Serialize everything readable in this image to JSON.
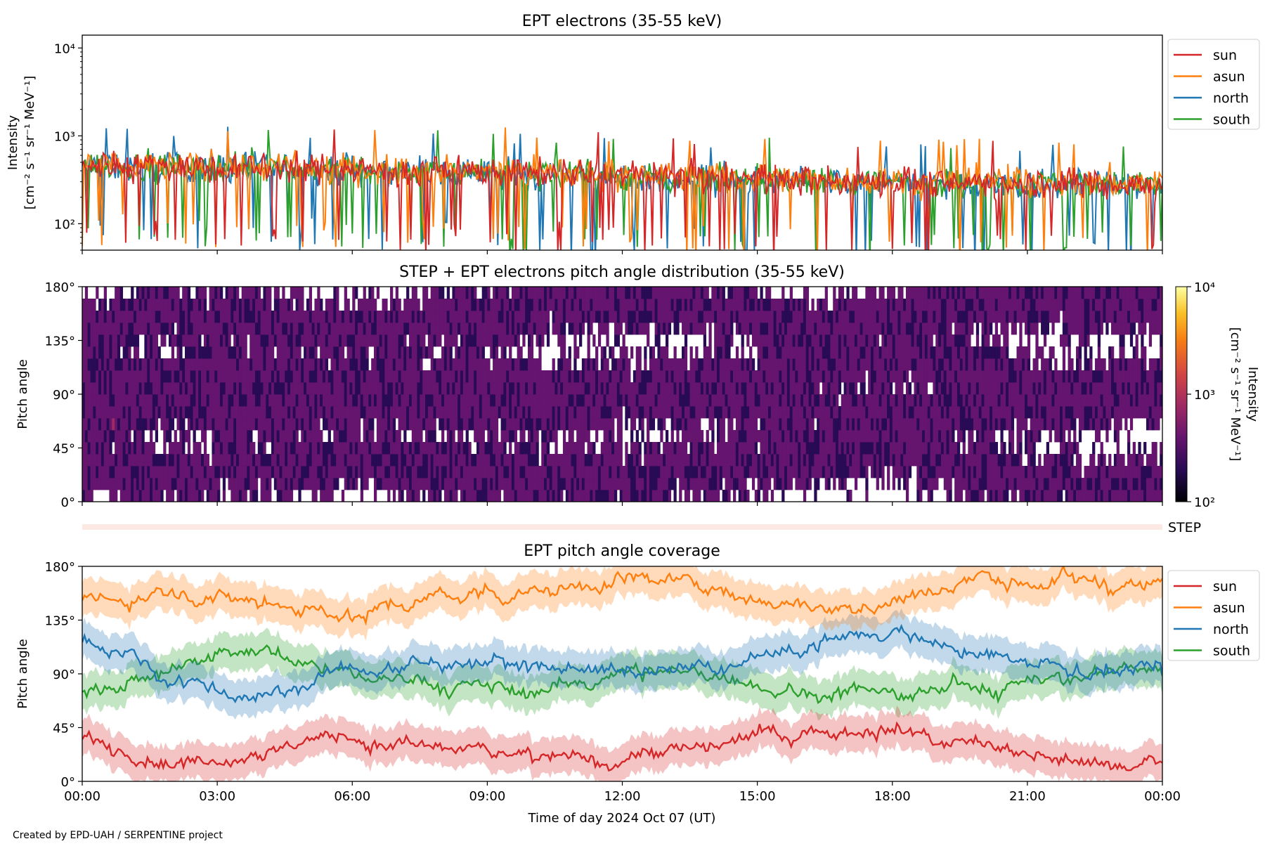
{
  "footer": "Created by EPD-UAH / SERPENTINE project",
  "colors": {
    "sun": "#d62728",
    "asun": "#ff7f0e",
    "north": "#1f77b4",
    "south": "#2ca02c",
    "step_bar": "#fde9e4"
  },
  "chart_data": [
    {
      "type": "line",
      "title": "EPT electrons (35-55 keV)",
      "ylabel_lines": [
        "Intensity",
        "[cm⁻² s⁻¹ sr⁻¹ MeV⁻¹]"
      ],
      "yscale": "log",
      "ylim": [
        50,
        14000
      ],
      "yticks": [
        {
          "value": 100,
          "label": "10²"
        },
        {
          "value": 1000,
          "label": "10³"
        },
        {
          "value": 10000,
          "label": "10⁴"
        }
      ],
      "xlim": [
        "2024-10-07 00:00",
        "2024-10-08 00:00"
      ],
      "legend": {
        "placement": "outside-right",
        "entries": [
          "sun",
          "asun",
          "north",
          "south"
        ]
      },
      "series": [
        {
          "name": "sun",
          "x": [
            "00:00",
            "02:00",
            "04:00",
            "06:00",
            "08:00",
            "10:00",
            "12:00",
            "14:00",
            "16:00",
            "18:00",
            "20:00",
            "22:00",
            "24:00"
          ],
          "values": [
            470,
            460,
            440,
            420,
            400,
            380,
            360,
            330,
            310,
            300,
            300,
            290,
            280
          ]
        },
        {
          "name": "asun",
          "x": [
            "00:00",
            "02:00",
            "04:00",
            "06:00",
            "08:00",
            "10:00",
            "12:00",
            "14:00",
            "16:00",
            "18:00",
            "20:00",
            "22:00",
            "24:00"
          ],
          "values": [
            480,
            470,
            450,
            430,
            410,
            390,
            370,
            340,
            320,
            310,
            310,
            300,
            290
          ]
        },
        {
          "name": "north",
          "x": [
            "00:00",
            "02:00",
            "04:00",
            "06:00",
            "08:00",
            "10:00",
            "12:00",
            "14:00",
            "16:00",
            "18:00",
            "20:00",
            "22:00",
            "24:00"
          ],
          "values": [
            440,
            430,
            420,
            400,
            380,
            360,
            340,
            320,
            300,
            290,
            280,
            280,
            270
          ]
        },
        {
          "name": "south",
          "x": [
            "00:00",
            "02:00",
            "04:00",
            "06:00",
            "08:00",
            "10:00",
            "12:00",
            "14:00",
            "16:00",
            "18:00",
            "20:00",
            "22:00",
            "24:00"
          ],
          "values": [
            460,
            450,
            440,
            420,
            400,
            370,
            350,
            320,
            300,
            300,
            290,
            290,
            280
          ]
        }
      ]
    },
    {
      "type": "heatmap",
      "title": "STEP + EPT electrons pitch angle distribution (35-55 keV)",
      "ylabel": "Pitch angle",
      "ylim": [
        0,
        180
      ],
      "yticks": [
        {
          "value": 0,
          "label": "0°"
        },
        {
          "value": 45,
          "label": "45°"
        },
        {
          "value": 90,
          "label": "90°"
        },
        {
          "value": 135,
          "label": "135°"
        },
        {
          "value": 180,
          "label": "180°"
        }
      ],
      "xlim": [
        "2024-10-07 00:00",
        "2024-10-08 00:00"
      ],
      "colorbar": {
        "label_lines": [
          "Intensity",
          "[cm⁻² s⁻¹ sr⁻¹ MeV⁻¹]"
        ],
        "scale": "log",
        "range": [
          100,
          10000
        ],
        "ticks": [
          {
            "value": 100,
            "label": "10²"
          },
          {
            "value": 1000,
            "label": "10³"
          },
          {
            "value": 10000,
            "label": "10⁴"
          }
        ],
        "colormap": "inferno"
      },
      "typical_intensity": 300
    },
    {
      "type": "bar",
      "label": "STEP"
    },
    {
      "type": "line",
      "title": "EPT pitch angle coverage",
      "ylabel": "Pitch angle",
      "ylim": [
        0,
        180
      ],
      "yticks": [
        {
          "value": 0,
          "label": "0°"
        },
        {
          "value": 45,
          "label": "45°"
        },
        {
          "value": 90,
          "label": "90°"
        },
        {
          "value": 135,
          "label": "135°"
        },
        {
          "value": 180,
          "label": "180°"
        }
      ],
      "xlim": [
        "2024-10-07 00:00",
        "2024-10-08 00:00"
      ],
      "xticks": [
        "00:00",
        "03:00",
        "06:00",
        "09:00",
        "12:00",
        "15:00",
        "18:00",
        "21:00",
        "00:00"
      ],
      "xlabel": "Time of day 2024 Oct 07 (UT)",
      "legend": {
        "placement": "outside-right",
        "entries": [
          "sun",
          "asun",
          "north",
          "south"
        ]
      },
      "series": [
        {
          "name": "sun",
          "x": [
            "00:00",
            "02:00",
            "04:00",
            "06:00",
            "08:00",
            "10:00",
            "12:00",
            "14:00",
            "16:00",
            "18:00",
            "20:00",
            "22:00",
            "24:00"
          ],
          "values": [
            35,
            20,
            30,
            35,
            25,
            20,
            22,
            28,
            40,
            45,
            25,
            15,
            15
          ]
        },
        {
          "name": "asun",
          "x": [
            "00:00",
            "02:00",
            "04:00",
            "06:00",
            "08:00",
            "10:00",
            "12:00",
            "14:00",
            "16:00",
            "18:00",
            "20:00",
            "22:00",
            "24:00"
          ],
          "values": [
            150,
            160,
            150,
            140,
            155,
            160,
            170,
            165,
            145,
            150,
            170,
            165,
            165
          ]
        },
        {
          "name": "north",
          "x": [
            "00:00",
            "02:00",
            "04:00",
            "06:00",
            "08:00",
            "10:00",
            "12:00",
            "14:00",
            "16:00",
            "18:00",
            "20:00",
            "22:00",
            "24:00"
          ],
          "values": [
            120,
            85,
            70,
            95,
            100,
            95,
            90,
            95,
            110,
            130,
            105,
            95,
            90
          ]
        },
        {
          "name": "south",
          "x": [
            "00:00",
            "02:00",
            "04:00",
            "06:00",
            "08:00",
            "10:00",
            "12:00",
            "14:00",
            "16:00",
            "18:00",
            "20:00",
            "22:00",
            "24:00"
          ],
          "values": [
            70,
            95,
            110,
            90,
            80,
            75,
            90,
            90,
            75,
            70,
            80,
            85,
            95
          ]
        }
      ]
    }
  ]
}
